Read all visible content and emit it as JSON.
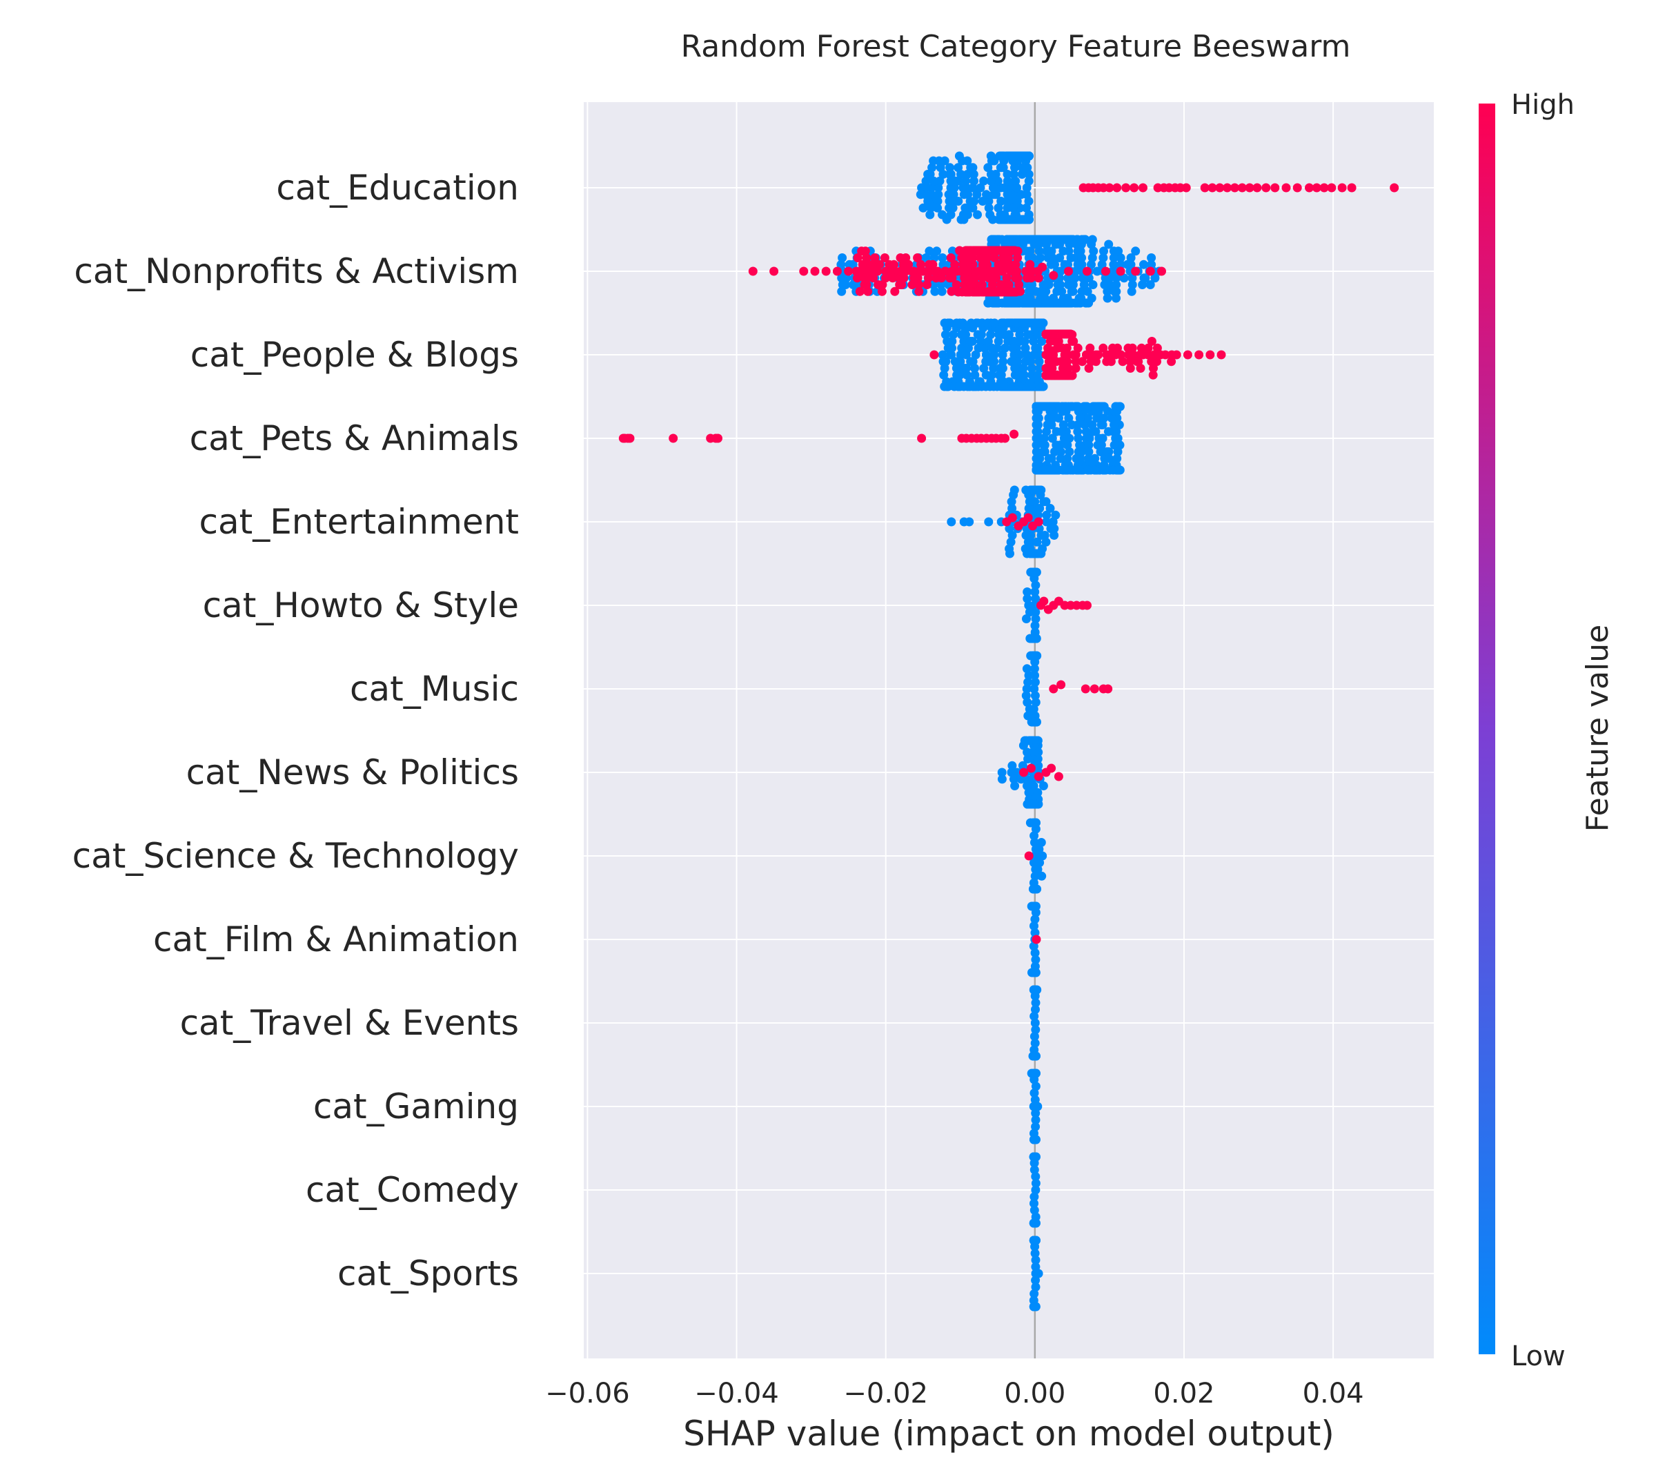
{
  "chart_data": {
    "type": "scatter",
    "subtype": "beeswarm",
    "title": "Random Forest Category Feature Beeswarm",
    "xlabel": "SHAP value (impact on model output)",
    "ylabel": "",
    "xlim": [
      -0.0605,
      0.0535
    ],
    "xticks": [
      -0.06,
      -0.04,
      -0.02,
      0.0,
      0.02,
      0.04
    ],
    "xtick_labels": [
      "−0.06",
      "−0.04",
      "−0.02",
      "0.00",
      "0.02",
      "0.04"
    ],
    "grid": true,
    "colorbar": {
      "label": "Feature value",
      "high_label": "High",
      "low_label": "Low",
      "high_color": "#ff0052",
      "mid_color": "#7d3fd4",
      "low_color": "#008bfb"
    },
    "features": [
      {
        "name": "cat_Education",
        "high": [
          0.0065,
          0.0072,
          0.0078,
          0.0085,
          0.0092,
          0.01,
          0.011,
          0.0122,
          0.0133,
          0.0145,
          0.0165,
          0.0173,
          0.018,
          0.0188,
          0.0195,
          0.0203,
          0.0228,
          0.0238,
          0.0248,
          0.0258,
          0.0268,
          0.0278,
          0.0288,
          0.0298,
          0.031,
          0.0322,
          0.0337,
          0.0352,
          0.0368,
          0.0378,
          0.0388,
          0.0398,
          0.0412,
          0.0425,
          0.0482
        ],
        "low": {
          "min": -0.0155,
          "max": -0.0008,
          "center": -0.002,
          "n": 380,
          "zero": 0
        }
      },
      {
        "name": "cat_Nonprofits & Activism",
        "high": [
          -0.0378,
          -0.035,
          -0.031,
          -0.0295,
          -0.028,
          -0.0265,
          -0.025,
          -0.022,
          -0.02,
          -0.018,
          -0.0165,
          -0.015,
          -0.0135,
          -0.012,
          -0.0105,
          -0.009,
          -0.0075,
          -0.006,
          -0.0048,
          -0.0035,
          -0.0025,
          -0.0012,
          0.001,
          0.0025,
          0.0045,
          0.007,
          0.0095,
          0.0115,
          0.0135,
          0.0155,
          0.017
        ],
        "low": {
          "min": -0.026,
          "max": 0.0168,
          "center": 0.0005,
          "n": 620,
          "zero": 0
        },
        "high_cluster": {
          "min": -0.024,
          "max": 0.0005,
          "center": -0.006,
          "n": 330
        }
      },
      {
        "name": "cat_People & Blogs",
        "high": [
          -0.0135,
          0.0025,
          0.004,
          0.0055,
          0.007,
          0.0085,
          0.01,
          0.0115,
          0.013,
          0.0145,
          0.016,
          0.0175,
          0.019,
          0.0205,
          0.022,
          0.0235,
          0.025
        ],
        "low": {
          "min": -0.0125,
          "max": 0.0012,
          "center": -0.0012,
          "n": 520,
          "zero": 0
        },
        "high_cluster": {
          "min": 0.0015,
          "max": 0.0185,
          "center": 0.003,
          "n": 180
        }
      },
      {
        "name": "cat_Pets & Animals",
        "high": [
          -0.0552,
          -0.055,
          -0.0546,
          -0.0543,
          -0.0485,
          -0.0435,
          -0.0428,
          -0.0425,
          -0.0152,
          -0.0098,
          -0.0092,
          -0.0085,
          -0.0078,
          -0.0072,
          -0.0065,
          -0.0058,
          -0.0052,
          -0.0045,
          -0.004,
          -0.0028
        ],
        "low": {
          "min": 0.0002,
          "max": 0.0115,
          "center": 0.0012,
          "n": 620,
          "zero": 0
        }
      },
      {
        "name": "cat_Entertainment",
        "high": [
          -0.0038,
          -0.003,
          -0.0022,
          -0.0015,
          -0.0009,
          -0.0003,
          0.0005
        ],
        "low": {
          "min": -0.0035,
          "max": 0.0028,
          "center": -0.0002,
          "n": 120,
          "zero": 0
        },
        "low_extra": [
          -0.0112,
          -0.0095,
          -0.0088,
          -0.0062,
          -0.0045
        ]
      },
      {
        "name": "cat_Howto & Style",
        "high": [
          0.0008,
          0.0012,
          0.0018,
          0.0025,
          0.0032,
          0.004,
          0.0048,
          0.0056,
          0.0064,
          0.007
        ],
        "low": {
          "min": -0.0012,
          "max": 0.0004,
          "center": 0.0,
          "n": 110,
          "zero": 0.6
        }
      },
      {
        "name": "cat_Music",
        "high": [
          0.0025,
          0.0035,
          0.0068,
          0.008,
          0.0092,
          0.0098
        ],
        "low": {
          "min": -0.0012,
          "max": 0.0005,
          "center": 0.0,
          "n": 110,
          "zero": 0.6
        }
      },
      {
        "name": "cat_News & Politics",
        "high": [
          -0.0015,
          -0.0005,
          0.0005,
          0.0015,
          0.0022,
          0.0032
        ],
        "low": {
          "min": -0.0045,
          "max": 0.0012,
          "center": -0.0002,
          "n": 130,
          "zero": 0.4
        }
      },
      {
        "name": "cat_Science & Technology",
        "high": [
          -0.0008
        ],
        "low": {
          "min": -0.0006,
          "max": 0.0012,
          "center": 0.0,
          "n": 110,
          "zero": 0.8
        }
      },
      {
        "name": "cat_Film & Animation",
        "high": [
          0.0002
        ],
        "low": {
          "min": -0.0006,
          "max": 0.0005,
          "center": 0.0,
          "n": 110,
          "zero": 0.9
        }
      },
      {
        "name": "cat_Travel & Events",
        "high": [],
        "low": {
          "min": -0.0005,
          "max": 0.0005,
          "center": 0.0,
          "n": 110,
          "zero": 0.95
        }
      },
      {
        "name": "cat_Gaming",
        "high": [],
        "low": {
          "min": -0.0005,
          "max": 0.0005,
          "center": 0.0,
          "n": 110,
          "zero": 0.95
        }
      },
      {
        "name": "cat_Comedy",
        "high": [],
        "low": {
          "min": -0.0005,
          "max": 0.0005,
          "center": 0.0,
          "n": 110,
          "zero": 0.95
        }
      },
      {
        "name": "cat_Sports",
        "high": [],
        "low": {
          "min": -0.0005,
          "max": 0.0005,
          "center": 0.0,
          "n": 110,
          "zero": 0.95
        }
      }
    ]
  }
}
